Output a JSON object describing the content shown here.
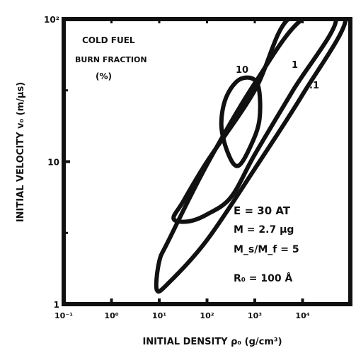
{
  "chart_data": {
    "type": "line",
    "title": "",
    "xlabel": "INITIAL DENSITY ρ₀ (g/cm³)",
    "ylabel": "INITIAL VELOCITY v₀ (m/μs)",
    "x_tick_labels": [
      "10⁻¹",
      "10⁰",
      "10¹",
      "10²",
      "10³",
      "10⁴"
    ],
    "y_tick_labels": [
      "1",
      "10",
      "10²"
    ],
    "xscale": "log",
    "yscale": "log",
    "xlim_log10": [
      -1,
      5
    ],
    "ylim_log10": [
      0,
      2
    ],
    "annotation": {
      "heading": [
        "COLD FUEL",
        "BURN FRACTION",
        "(%)"
      ],
      "params": [
        "E = 30 AT",
        "M = 2.7 μg",
        "M_s/M_f = 5",
        "R₀ = 100 Å"
      ]
    },
    "contour_labels": [
      "10",
      "1",
      ".1"
    ],
    "series": [
      {
        "label": ".1",
        "points": [
          [
            1.0,
            0.3
          ],
          [
            1.2,
            0.45
          ],
          [
            2.0,
            0.98
          ],
          [
            3.0,
            1.55
          ],
          [
            4.0,
            2.0
          ],
          [
            4.9,
            2.0
          ],
          [
            4.0,
            1.47
          ],
          [
            3.0,
            0.95
          ],
          [
            2.0,
            0.45
          ],
          [
            1.2,
            0.15
          ],
          [
            0.95,
            0.1
          ]
        ]
      },
      {
        "label": "1",
        "points": [
          [
            1.3,
            0.6
          ],
          [
            1.5,
            0.72
          ],
          [
            2.0,
            1.0
          ],
          [
            3.0,
            1.5
          ],
          [
            3.7,
            2.0
          ],
          [
            4.7,
            2.0
          ],
          [
            3.8,
            1.5
          ],
          [
            3.0,
            1.05
          ],
          [
            2.5,
            0.75
          ],
          [
            2.0,
            0.63
          ],
          [
            1.6,
            0.58
          ]
        ]
      },
      {
        "label": "10",
        "points": [
          [
            2.45,
            1.05
          ],
          [
            2.3,
            1.25
          ],
          [
            2.4,
            1.45
          ],
          [
            2.7,
            1.58
          ],
          [
            3.05,
            1.55
          ],
          [
            3.1,
            1.3
          ],
          [
            2.9,
            1.1
          ],
          [
            2.65,
            0.97
          ]
        ]
      }
    ]
  }
}
